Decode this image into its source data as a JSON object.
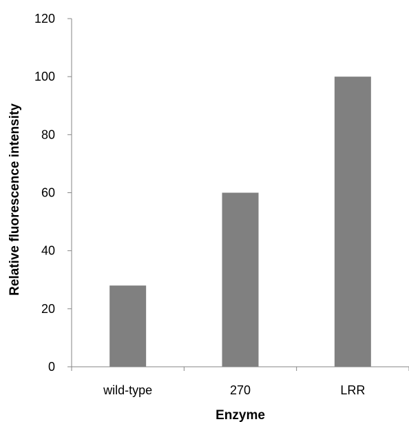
{
  "chart_data": {
    "type": "bar",
    "categories": [
      "wild-type",
      "270",
      "LRR"
    ],
    "values": [
      28,
      60,
      100
    ],
    "xlabel": "Enzyme",
    "ylabel": "Relative fluorescence intensity",
    "ylim": [
      0,
      120
    ],
    "yticks": [
      "0",
      "20",
      "40",
      "60",
      "80",
      "100",
      "120"
    ],
    "grid": false,
    "legend": "none",
    "bar_color": "#808080",
    "axis_color": "#868686"
  }
}
